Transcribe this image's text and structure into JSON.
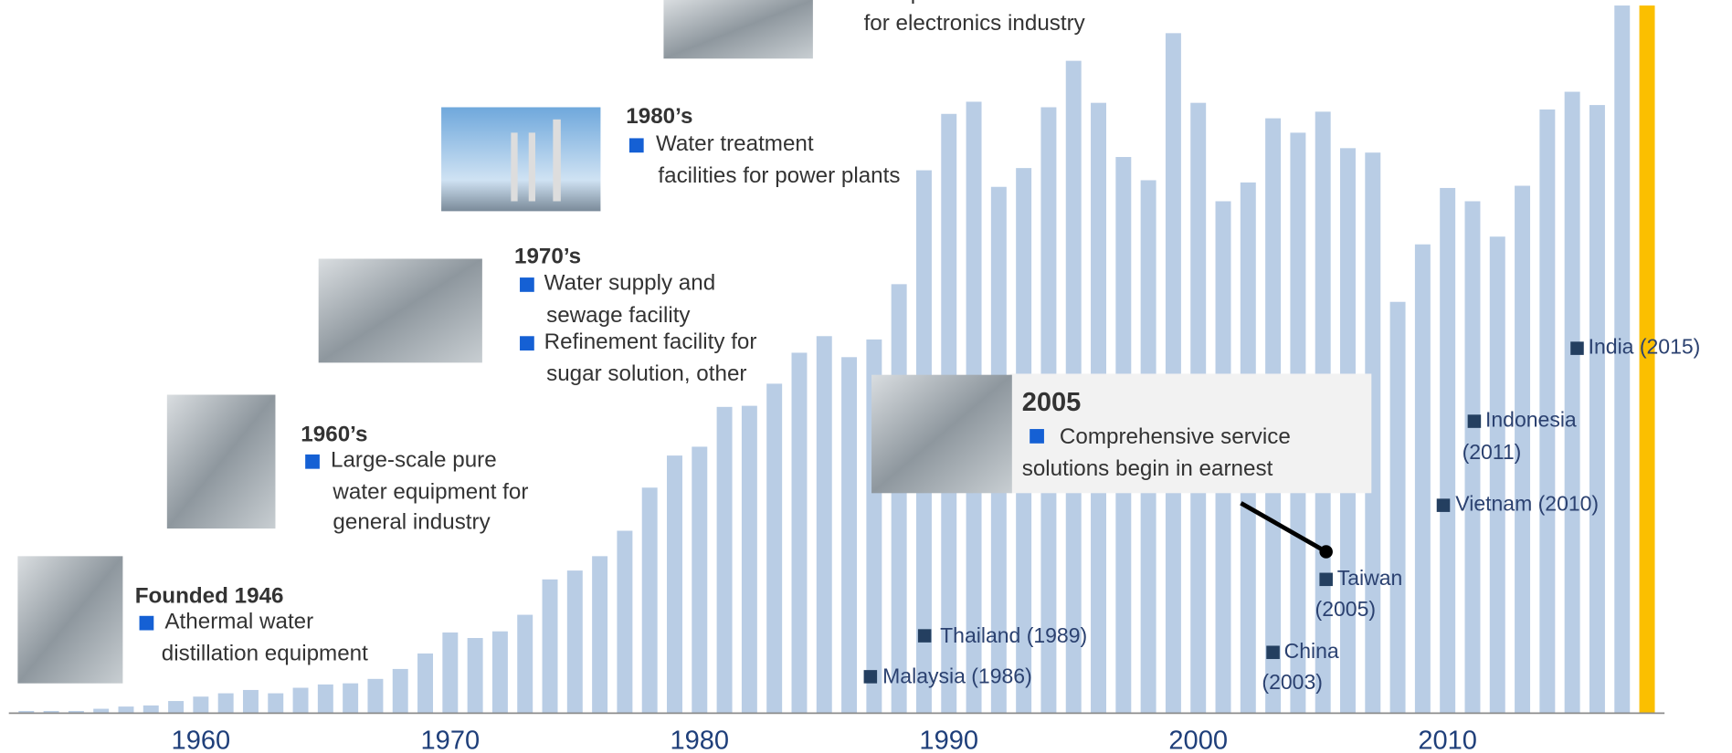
{
  "chart_data": {
    "type": "bar",
    "x": [
      1953,
      1954,
      1955,
      1956,
      1957,
      1958,
      1959,
      1960,
      1961,
      1962,
      1963,
      1964,
      1965,
      1966,
      1967,
      1968,
      1969,
      1970,
      1971,
      1972,
      1973,
      1974,
      1975,
      1976,
      1977,
      1978,
      1979,
      1980,
      1981,
      1982,
      1983,
      1984,
      1985,
      1986,
      1987,
      1988,
      1989,
      1990,
      1991,
      1992,
      1993,
      1994,
      1995,
      1996,
      1997,
      1998,
      1999,
      2000,
      2001,
      2002,
      2003,
      2004,
      2005,
      2006,
      2007,
      2008,
      2009,
      2010,
      2011,
      2012,
      2013,
      2014,
      2015,
      2016,
      2017,
      2018
    ],
    "values": [
      2,
      2,
      2,
      4,
      6,
      7,
      11,
      15,
      18,
      21,
      18,
      23,
      26,
      27,
      31,
      40,
      54,
      73,
      68,
      74,
      89,
      121,
      129,
      142,
      165,
      204,
      233,
      241,
      277,
      278,
      298,
      326,
      341,
      322,
      338,
      388,
      491,
      542,
      553,
      476,
      493,
      548,
      590,
      552,
      503,
      482,
      615,
      552,
      463,
      480,
      538,
      525,
      544,
      511,
      507,
      372,
      424,
      475,
      463,
      431,
      477,
      546,
      562,
      550,
      640,
      640
    ],
    "colors": [
      "#b9cde5",
      "#b9cde5",
      "#b9cde5",
      "#b9cde5",
      "#b9cde5",
      "#b9cde5",
      "#b9cde5",
      "#b9cde5",
      "#b9cde5",
      "#b9cde5",
      "#b9cde5",
      "#b9cde5",
      "#b9cde5",
      "#b9cde5",
      "#b9cde5",
      "#b9cde5",
      "#b9cde5",
      "#b9cde5",
      "#b9cde5",
      "#b9cde5",
      "#b9cde5",
      "#b9cde5",
      "#b9cde5",
      "#b9cde5",
      "#b9cde5",
      "#b9cde5",
      "#b9cde5",
      "#b9cde5",
      "#b9cde5",
      "#b9cde5",
      "#b9cde5",
      "#b9cde5",
      "#b9cde5",
      "#b9cde5",
      "#b9cde5",
      "#b9cde5",
      "#b9cde5",
      "#b9cde5",
      "#b9cde5",
      "#b9cde5",
      "#b9cde5",
      "#b9cde5",
      "#b9cde5",
      "#b9cde5",
      "#b9cde5",
      "#b9cde5",
      "#b9cde5",
      "#b9cde5",
      "#b9cde5",
      "#b9cde5",
      "#b9cde5",
      "#b9cde5",
      "#b9cde5",
      "#b9cde5",
      "#b9cde5",
      "#b9cde5",
      "#b9cde5",
      "#b9cde5",
      "#b9cde5",
      "#b9cde5",
      "#b9cde5",
      "#b9cde5",
      "#b9cde5",
      "#b9cde5",
      "#b9cde5",
      "#fbbf00"
    ],
    "xlim": [
      1952.3,
      2018.7
    ],
    "xticks": [
      1960,
      1970,
      1980,
      1990,
      2000,
      2010
    ],
    "ylim": [
      0,
      640
    ],
    "milestones": [
      {
        "items": [
          [
            "Ultrapure water facilities",
            "for electronics industry"
          ]
        ]
      },
      {
        "heading": "1980’s",
        "items": [
          [
            "Water treatment",
            "facilities for power plants"
          ]
        ]
      },
      {
        "heading": "1970’s",
        "items": [
          [
            "Water supply and",
            "sewage facility"
          ],
          [
            "Refinement facility for",
            "sugar solution, other"
          ]
        ]
      },
      {
        "heading": "1960’s",
        "items": [
          [
            "Large-scale pure",
            "water equipment for",
            "general industry"
          ]
        ]
      },
      {
        "heading": "Founded 1946",
        "items": [
          [
            "Athermal water",
            "distillation equipment"
          ]
        ]
      },
      {
        "heading": "2005",
        "items": [
          [
            "Comprehensive service",
            "solutions begin in earnest"
          ]
        ]
      }
    ],
    "countries": [
      [
        "Malaysia (1986)"
      ],
      [
        "Thailand (1989)"
      ],
      [
        "China",
        "(2003)"
      ],
      [
        "Taiwan",
        "(2005)"
      ],
      [
        "Vietnam (2010)"
      ],
      [
        "Indonesia",
        "(2011)"
      ],
      [
        "India (2015)"
      ]
    ]
  }
}
